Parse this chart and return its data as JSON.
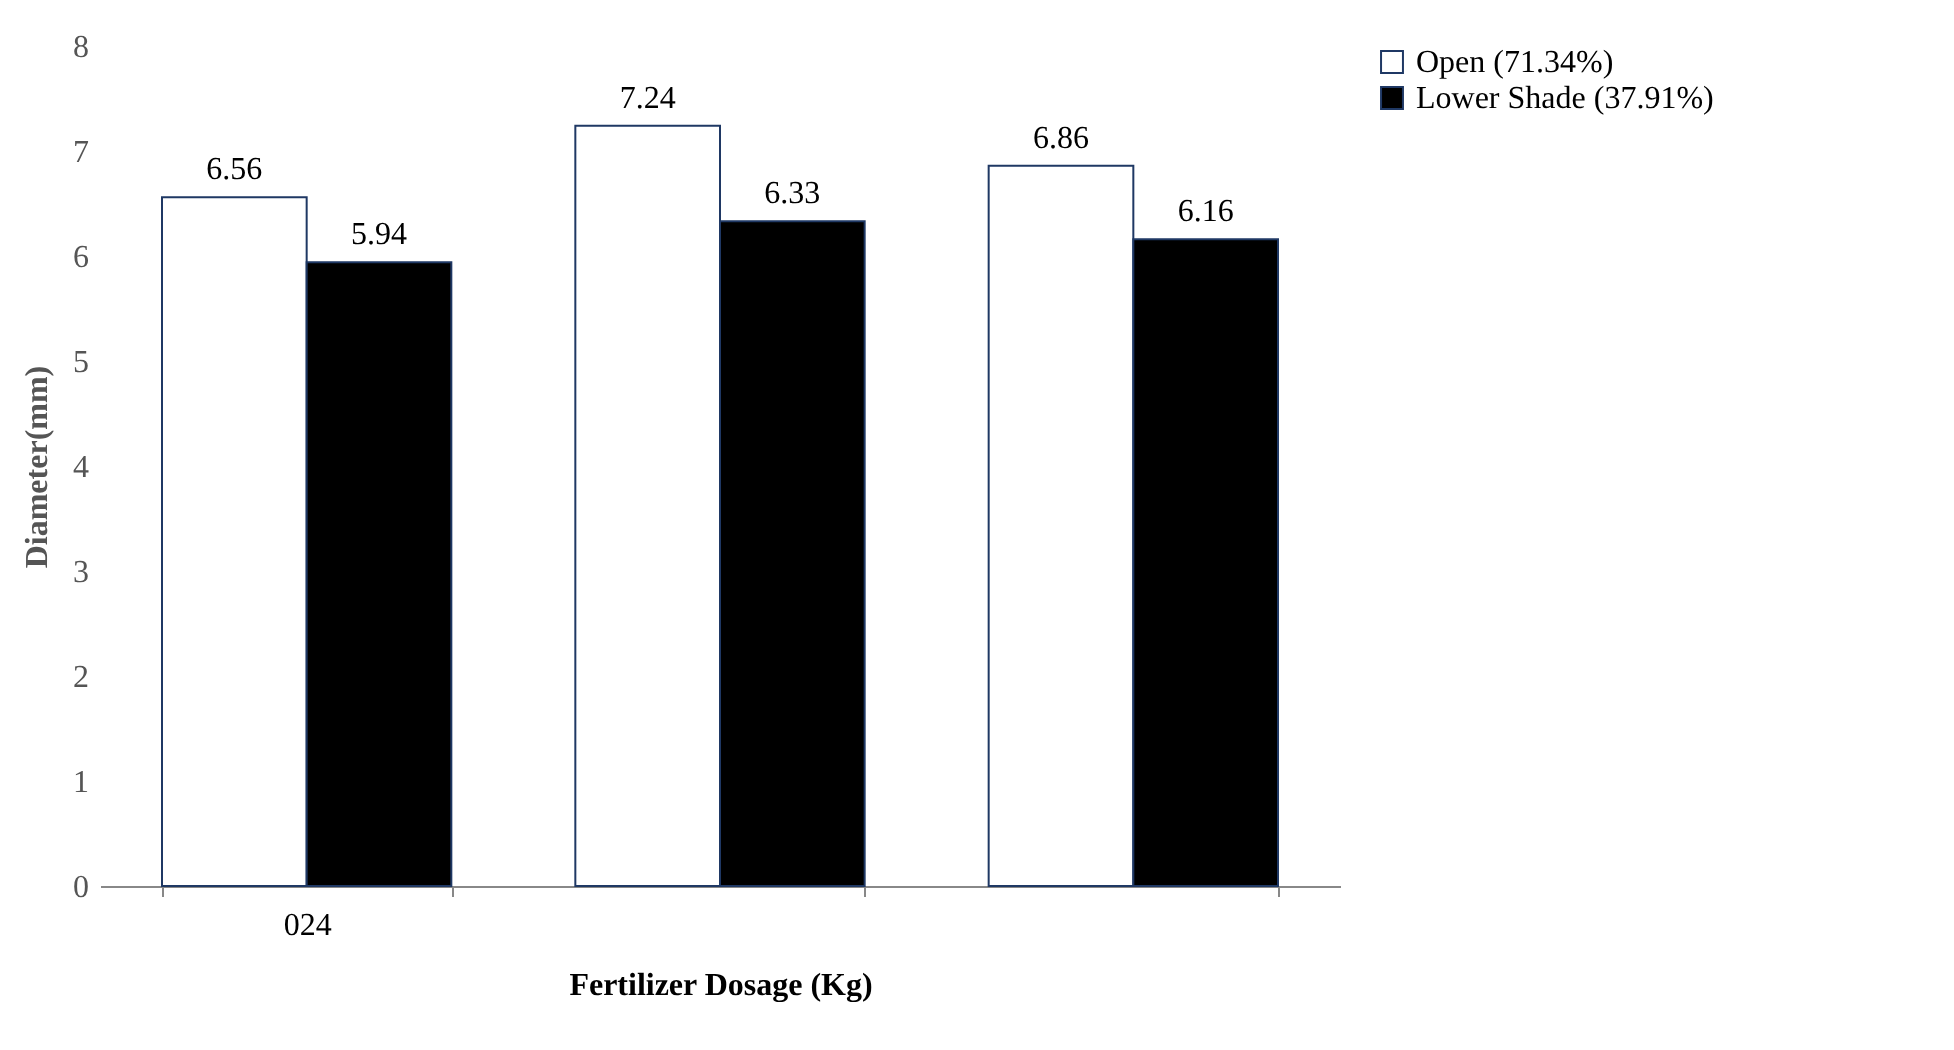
{
  "chart_data": {
    "type": "bar",
    "xlabel": "Fertilizer Dosage (Kg)",
    "ylabel": "Diameter(mm)",
    "categories": [
      "024",
      null,
      null
    ],
    "series": [
      {
        "name": "Open (71.34%)",
        "color": "#ffffff",
        "values": [
          6.56,
          7.24,
          6.86
        ]
      },
      {
        "name": "Lower Shade (37.91%)",
        "color": "#000000",
        "values": [
          5.94,
          6.33,
          6.16
        ]
      }
    ],
    "ylim": [
      0,
      8
    ],
    "yticks": [
      0,
      1,
      2,
      3,
      4,
      5,
      6,
      7,
      8
    ],
    "grid": false,
    "legend": "right",
    "data_labels": true
  }
}
